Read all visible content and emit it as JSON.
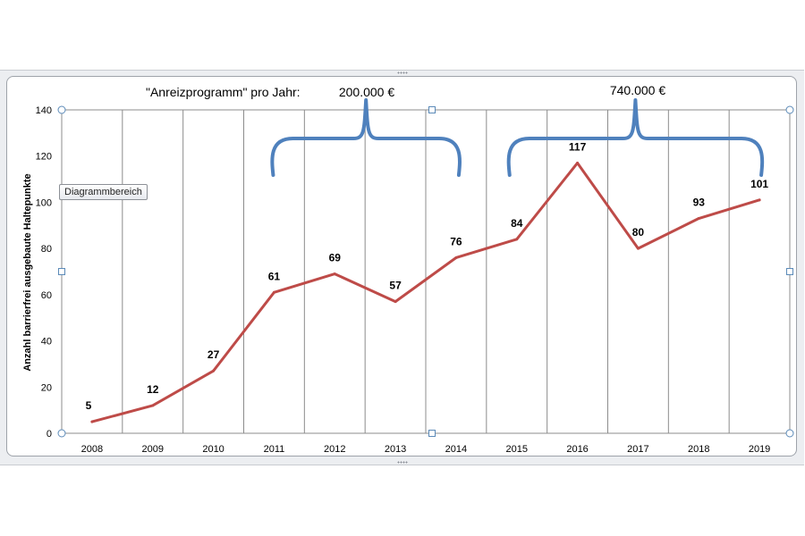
{
  "chart_data": {
    "type": "line",
    "categories": [
      "2008",
      "2009",
      "2010",
      "2011",
      "2012",
      "2013",
      "2014",
      "2015",
      "2016",
      "2017",
      "2018",
      "2019"
    ],
    "series": [
      {
        "values": [
          5,
          12,
          27,
          61,
          69,
          57,
          76,
          84,
          117,
          80,
          93,
          101
        ]
      }
    ],
    "data_labels": [
      "5",
      "12",
      "27",
      "61",
      "69",
      "57",
      "76",
      "84",
      "117",
      "80",
      "93",
      "101"
    ],
    "ylabel": "Anzahl barrierfrei ausgebaute Haltepunkte",
    "xlabel": "",
    "ylim": [
      0,
      140
    ],
    "yticks": [
      "0",
      "20",
      "40",
      "60",
      "80",
      "100",
      "120",
      "140"
    ],
    "grid": "vertical",
    "colors": {
      "line": "#be4b48",
      "bracket": "#4f81bd",
      "gridline": "#7f7f7f"
    },
    "annotations": {
      "title_note": "\"Anreizprogramm\" pro Jahr:",
      "bracket_1": {
        "label": "200.000 €",
        "from": "2011",
        "to": "2014"
      },
      "bracket_2": {
        "label": "740.000 €",
        "from": "2015",
        "to": "2019"
      }
    }
  },
  "ui": {
    "tooltip": "Diagrammbereich"
  }
}
